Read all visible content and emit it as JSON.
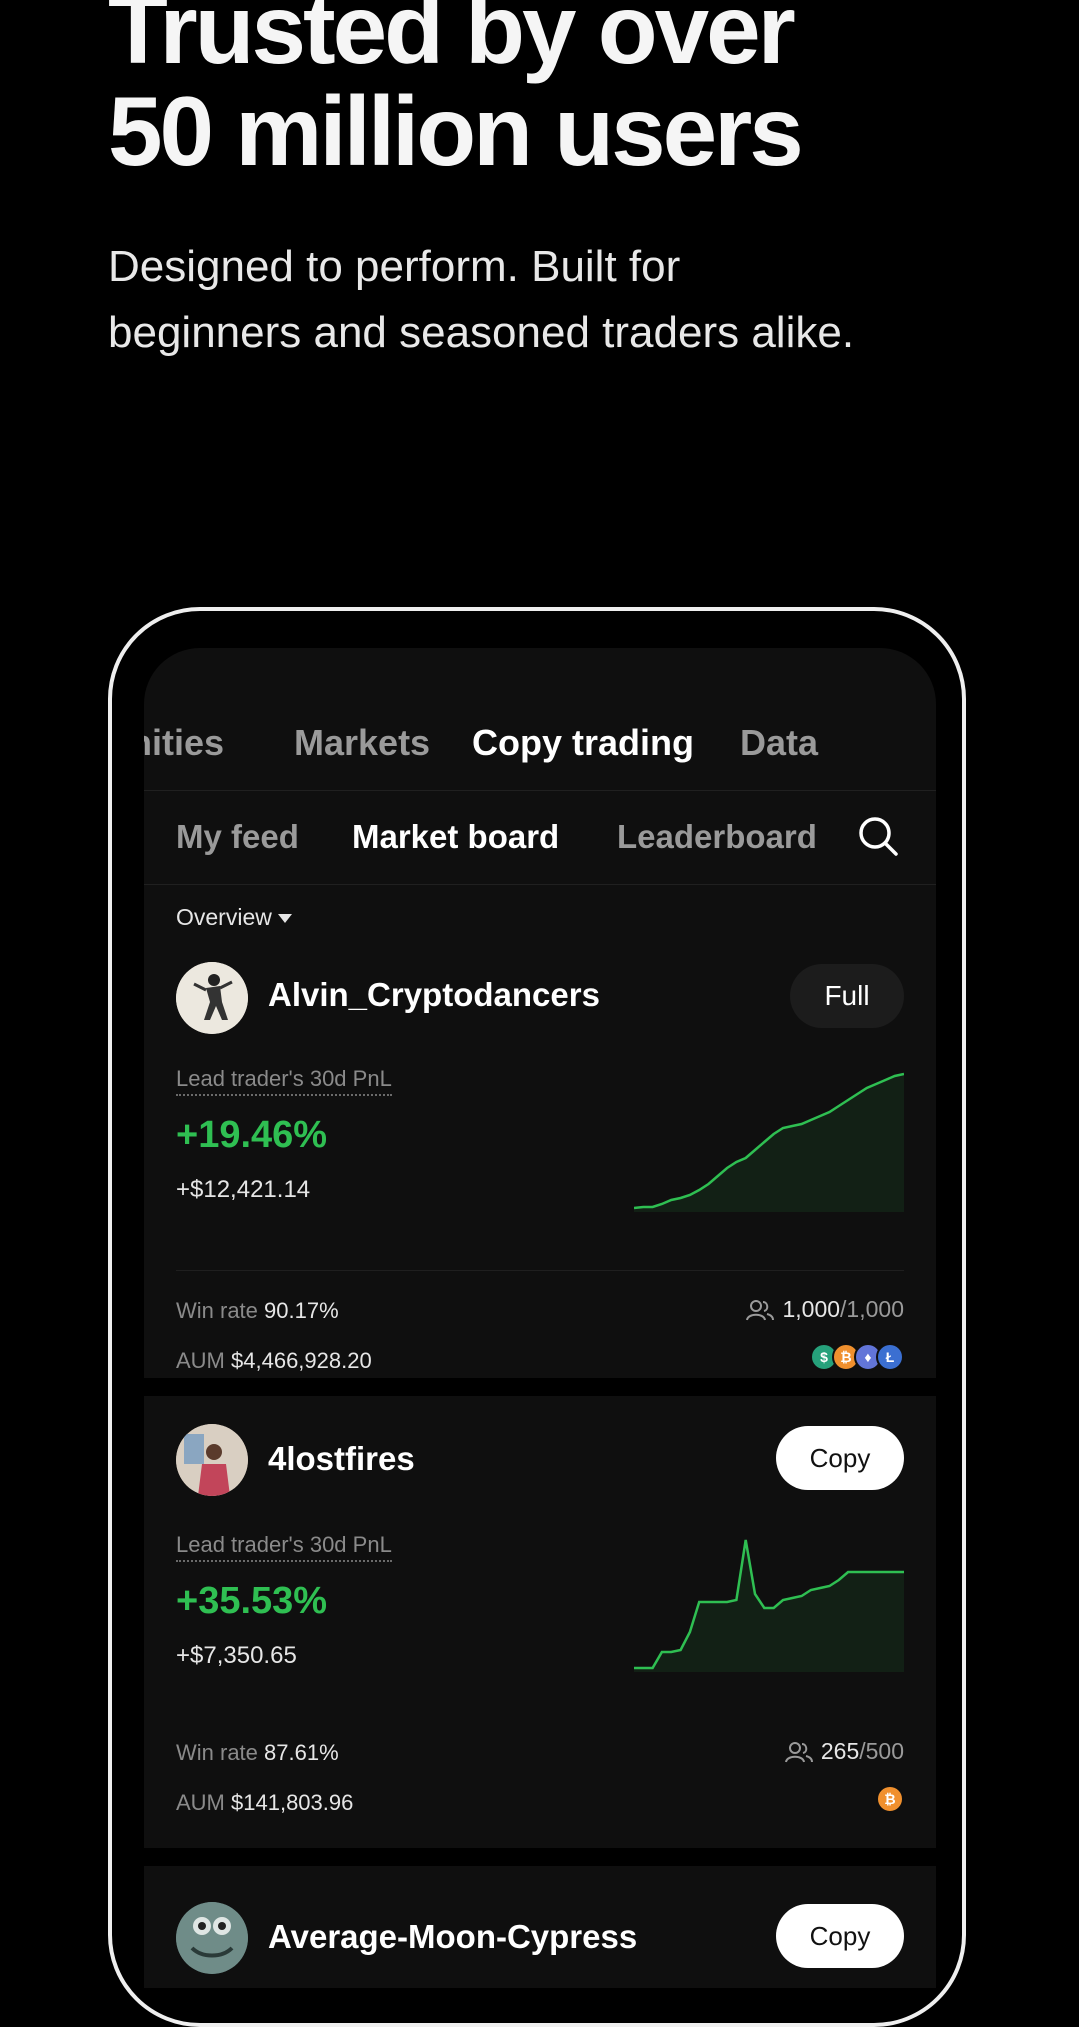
{
  "hero": {
    "title_line1": "Trusted by over",
    "title_line2": "50 million users",
    "subtitle_line1": "Designed to perform. Built for",
    "subtitle_line2": "beginners and seasoned traders alike."
  },
  "top_tabs": [
    {
      "label": "nities"
    },
    {
      "label": "Markets"
    },
    {
      "label": "Copy trading",
      "active": true
    },
    {
      "label": "Data"
    }
  ],
  "sub_tabs": [
    {
      "label": "My feed"
    },
    {
      "label": "Market board",
      "active": true
    },
    {
      "label": "Leaderboard"
    }
  ],
  "overview_label": "Overview",
  "traders": [
    {
      "name": "Alvin_Cryptodancers",
      "button": "Full",
      "pnl_label": "Lead trader's 30d PnL",
      "pnl_pct": "+19.46%",
      "pnl_abs": "+$12,421.14",
      "win_rate_label": "Win rate",
      "win_rate": "90.17%",
      "aum_label": "AUM",
      "aum": "$4,466,928.20",
      "copiers": "1,000",
      "copiers_max": "/1,000",
      "coins": [
        "usdt",
        "btc",
        "eth",
        "ltc"
      ],
      "spark": [
        4,
        5,
        5,
        8,
        12,
        14,
        17,
        22,
        28,
        36,
        44,
        50,
        54,
        62,
        70,
        78,
        84,
        86,
        88,
        92,
        96,
        100,
        106,
        112,
        118,
        124,
        128,
        132,
        136,
        138
      ]
    },
    {
      "name": "4lostfires",
      "button": "Copy",
      "pnl_label": "Lead trader's 30d PnL",
      "pnl_pct": "+35.53%",
      "pnl_abs": "+$7,350.65",
      "win_rate_label": "Win rate",
      "win_rate": "87.61%",
      "aum_label": "AUM",
      "aum": "$141,803.96",
      "copiers": "265",
      "copiers_max": "/500",
      "coins": [
        "btc"
      ],
      "spark": [
        4,
        4,
        4,
        20,
        20,
        22,
        40,
        70,
        70,
        70,
        70,
        72,
        132,
        78,
        64,
        64,
        72,
        74,
        76,
        82,
        84,
        86,
        92,
        100,
        100,
        100,
        100,
        100,
        100,
        100
      ]
    },
    {
      "name": "Average-Moon-Cypress",
      "button": "Copy"
    }
  ],
  "colors": {
    "positive": "#2fbf52",
    "background": "#000000",
    "card": "#0f0f0f"
  },
  "icons": {
    "search": "search-icon",
    "copiers": "users-icon"
  }
}
